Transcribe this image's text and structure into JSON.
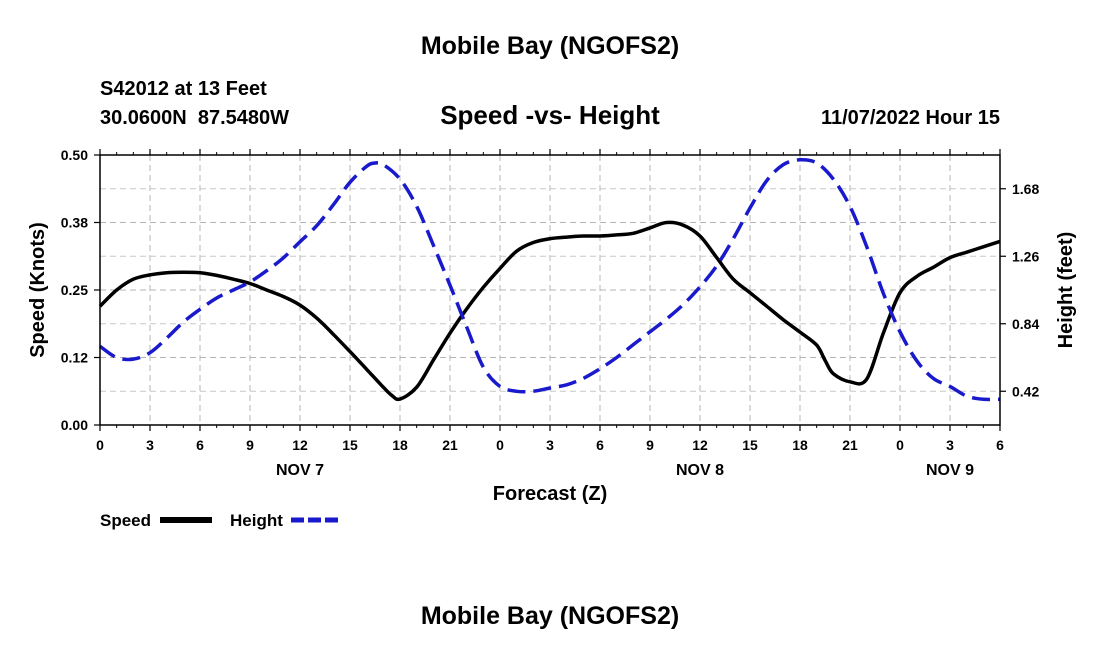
{
  "chart_data": {
    "type": "line",
    "title": "Mobile Bay (NGOFS2)",
    "footer_title": "Mobile Bay (NGOFS2)",
    "station": "S42012 at 13 Feet",
    "coordinates": "30.0600N  87.5480W",
    "subtitle": "Speed -vs- Height",
    "timestamp": "11/07/2022 Hour 15",
    "xlabel": "Forecast (Z)",
    "ylabel_left": "Speed (Knots)",
    "ylabel_right": "Height (feet)",
    "x_range": [
      0,
      54
    ],
    "x_tick_labels": [
      "0",
      "3",
      "6",
      "9",
      "12",
      "15",
      "18",
      "21",
      "0",
      "3",
      "6",
      "9",
      "12",
      "15",
      "18",
      "21",
      "0",
      "3",
      "6"
    ],
    "day_labels": [
      {
        "label": "NOV 7",
        "hour": 12
      },
      {
        "label": "NOV 8",
        "hour": 36
      },
      {
        "label": "NOV 9",
        "hour": 51
      }
    ],
    "y_left": {
      "range": [
        0,
        0.5
      ],
      "ticks": [
        0.0,
        0.125,
        0.25,
        0.375,
        0.5
      ],
      "tick_labels": [
        "0.00",
        "0.12",
        "0.25",
        "0.38",
        "0.50"
      ]
    },
    "y_right": {
      "range": [
        0.21,
        1.89
      ],
      "ticks": [
        0.42,
        0.84,
        1.26,
        1.68
      ],
      "tick_labels": [
        "0.42",
        "0.84",
        "1.26",
        "1.68"
      ]
    },
    "grid": true,
    "series": [
      {
        "name": "Speed",
        "axis": "left",
        "color": "#000000",
        "dash": "solid",
        "x": [
          0,
          1,
          2,
          3,
          4,
          5,
          6,
          7,
          8,
          9,
          10,
          11,
          12,
          13,
          14,
          15,
          16,
          17,
          17.5,
          18,
          19,
          20,
          21,
          22,
          23,
          24,
          25,
          26,
          27,
          28,
          29,
          30,
          31,
          32,
          33,
          34,
          35,
          36,
          37,
          38,
          39,
          40,
          41,
          42,
          43,
          43.5,
          44,
          45,
          46,
          47,
          48,
          49,
          50,
          51,
          52,
          53,
          54
        ],
        "y": [
          0.22,
          0.25,
          0.27,
          0.278,
          0.282,
          0.283,
          0.282,
          0.277,
          0.27,
          0.262,
          0.25,
          0.238,
          0.222,
          0.198,
          0.168,
          0.136,
          0.103,
          0.07,
          0.055,
          0.048,
          0.07,
          0.12,
          0.17,
          0.215,
          0.255,
          0.29,
          0.322,
          0.338,
          0.345,
          0.348,
          0.35,
          0.35,
          0.352,
          0.355,
          0.365,
          0.375,
          0.37,
          0.35,
          0.31,
          0.27,
          0.245,
          0.22,
          0.195,
          0.172,
          0.148,
          0.12,
          0.095,
          0.08,
          0.085,
          0.17,
          0.245,
          0.275,
          0.292,
          0.31,
          0.32,
          0.33,
          0.34
        ]
      },
      {
        "name": "Height",
        "axis": "right",
        "color": "#1a1acd",
        "dash": "dashed",
        "x": [
          0,
          1,
          2,
          3,
          4,
          5,
          6,
          7,
          8,
          9,
          10,
          11,
          12,
          13,
          14,
          15,
          16,
          16.5,
          17,
          18,
          19,
          20,
          21,
          22,
          23,
          24,
          25,
          26,
          27,
          28,
          29,
          30,
          31,
          32,
          33,
          34,
          35,
          36,
          37,
          38,
          39,
          40,
          41,
          42,
          43,
          44,
          45,
          46,
          47,
          48,
          49,
          50,
          51,
          52,
          53,
          54
        ],
        "y": [
          0.7,
          0.63,
          0.62,
          0.66,
          0.75,
          0.85,
          0.93,
          1.0,
          1.05,
          1.1,
          1.17,
          1.25,
          1.35,
          1.45,
          1.58,
          1.72,
          1.82,
          1.84,
          1.83,
          1.74,
          1.57,
          1.33,
          1.08,
          0.82,
          0.57,
          0.45,
          0.42,
          0.42,
          0.44,
          0.46,
          0.5,
          0.56,
          0.63,
          0.71,
          0.79,
          0.87,
          0.96,
          1.07,
          1.2,
          1.37,
          1.56,
          1.73,
          1.83,
          1.86,
          1.84,
          1.74,
          1.57,
          1.32,
          1.03,
          0.79,
          0.61,
          0.5,
          0.45,
          0.39,
          0.37,
          0.37
        ]
      }
    ]
  }
}
